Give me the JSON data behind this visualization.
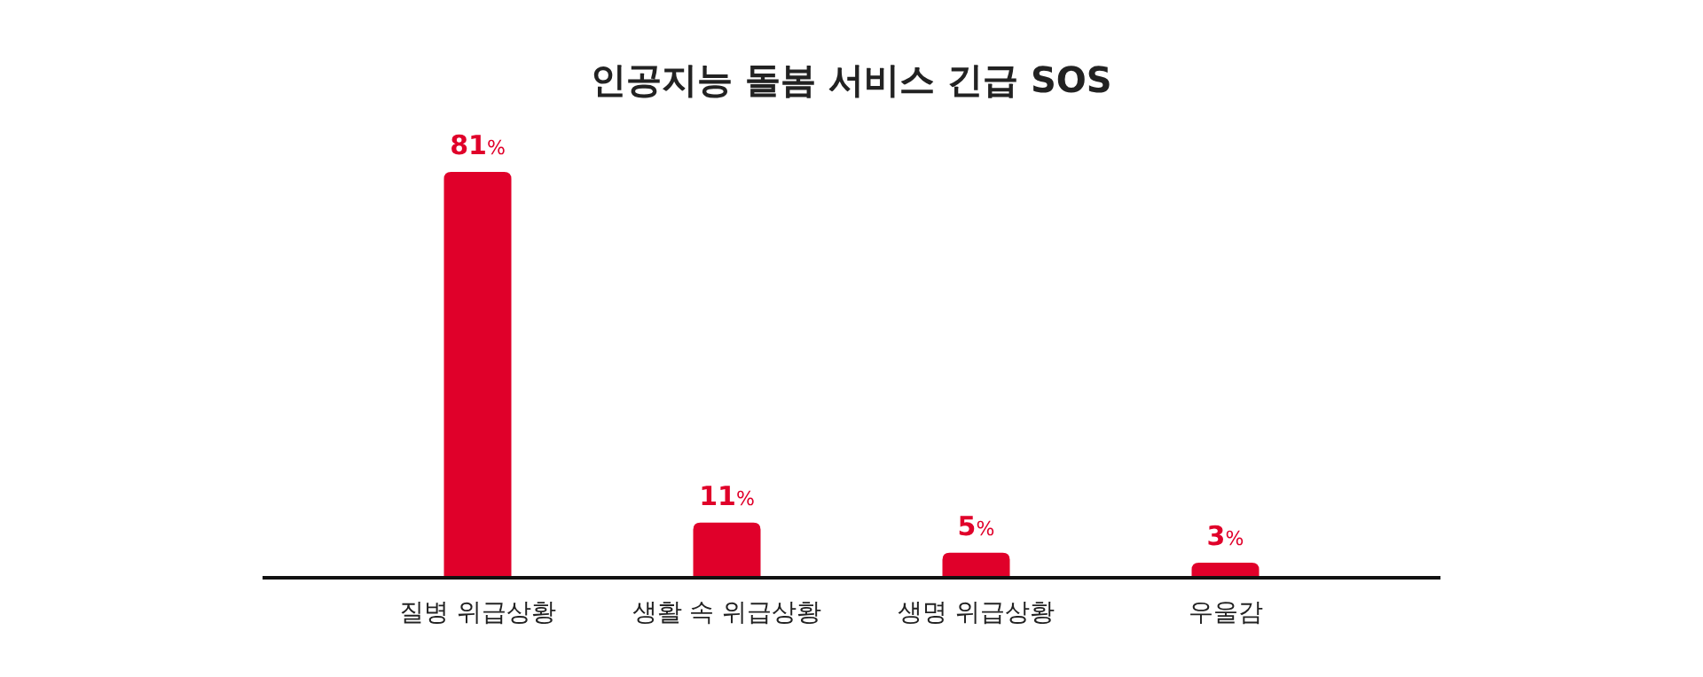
{
  "chart_data": {
    "type": "bar",
    "title": "인공지능 돌봄 서비스 긴급 SOS",
    "categories": [
      "질병 위급상황",
      "생활 속 위급상황",
      "생명 위급상황",
      "우울감"
    ],
    "values": [
      81,
      11,
      5,
      3
    ],
    "value_labels": [
      "81%",
      "11%",
      "5%",
      "3%"
    ],
    "color": "#e0002a"
  }
}
